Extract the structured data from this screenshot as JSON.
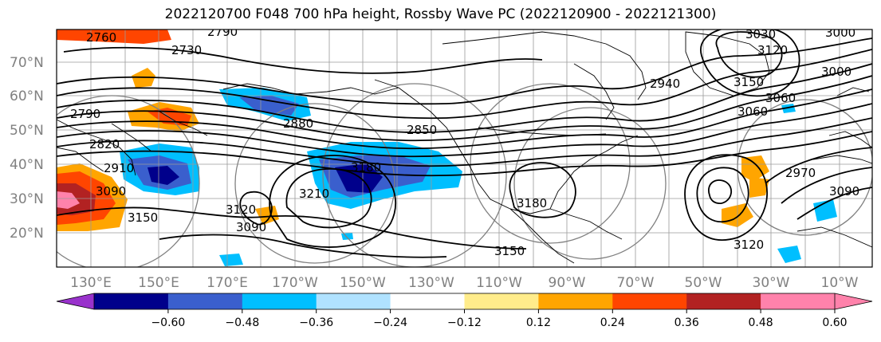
{
  "title": "2022120700 F048 700 hPa height, Rossby Wave PC (2022120900 - 2022121300)",
  "y_ticks": [
    "70°N",
    "60°N",
    "50°N",
    "40°N",
    "30°N",
    "20°N"
  ],
  "x_ticks": [
    "130°E",
    "150°E",
    "170°E",
    "170°W",
    "150°W",
    "130°W",
    "110°W",
    "90°W",
    "70°W",
    "50°W",
    "30°W",
    "10°W"
  ],
  "colorbar": {
    "ticks": [
      "−0.60",
      "−0.48",
      "−0.36",
      "−0.24",
      "−0.12",
      "0.12",
      "0.24",
      "0.36",
      "0.48",
      "0.60"
    ],
    "colors": [
      "#9932cc",
      "#00008b",
      "#3a5fcd",
      "#00bfff",
      "#b0e2ff",
      "#ffffff",
      "#ffec8b",
      "#ffa500",
      "#ff4500",
      "#b22222",
      "#ff82ab",
      "#ff82ab"
    ]
  },
  "contour_labels": [
    "2760",
    "2790",
    "2730",
    "3030",
    "3000",
    "3120",
    "2790",
    "2820",
    "2850",
    "2880",
    "2910",
    "3090",
    "3180",
    "3210",
    "3120",
    "3090",
    "3150",
    "3150",
    "3180",
    "3060",
    "3150",
    "2940",
    "3000",
    "2970",
    "3090",
    "3120",
    "3060"
  ]
}
